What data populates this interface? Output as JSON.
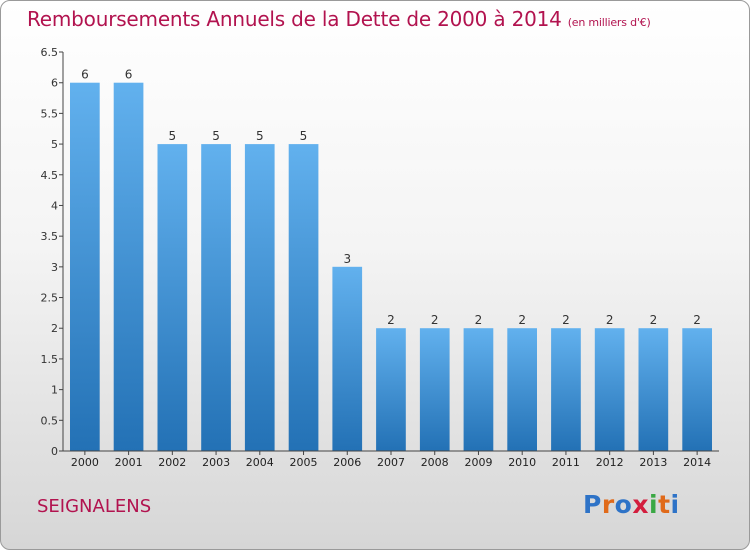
{
  "title": "Remboursements Annuels de la Dette de 2000 à 2014",
  "title_unit": "(en milliers d'€)",
  "commune": "SEIGNALENS",
  "logo": {
    "letters": [
      "P",
      "r",
      "o",
      "x",
      "i",
      "t",
      "i"
    ],
    "colors": [
      "#2e73c7",
      "#e06a1a",
      "#2e73c7",
      "#d31e3e",
      "#3aa844",
      "#e06a1a",
      "#2e73c7"
    ]
  },
  "colors": {
    "title": "#b2134f",
    "bar_light": "#62b1ee",
    "bar_dark": "#2371b5"
  },
  "chart_data": {
    "type": "bar",
    "categories": [
      "2000",
      "2001",
      "2002",
      "2003",
      "2004",
      "2005",
      "2006",
      "2007",
      "2008",
      "2009",
      "2010",
      "2011",
      "2012",
      "2013",
      "2014"
    ],
    "values": [
      6,
      6,
      5,
      5,
      5,
      5,
      3,
      2,
      2,
      2,
      2,
      2,
      2,
      2,
      2
    ],
    "value_labels": [
      "6",
      "6",
      "5",
      "5",
      "5",
      "5",
      "3",
      "2",
      "2",
      "2",
      "2",
      "2",
      "2",
      "2",
      "2"
    ],
    "ylim": [
      0,
      6.5
    ],
    "yticks": [
      0,
      0.5,
      1,
      1.5,
      2,
      2.5,
      3,
      3.5,
      4,
      4.5,
      5,
      5.5,
      6,
      6.5
    ],
    "ytick_labels": [
      "0",
      "0.5",
      "1",
      "1.5",
      "2",
      "2.5",
      "3",
      "3.5",
      "4",
      "4.5",
      "5",
      "5.5",
      "6",
      "6.5"
    ],
    "xlabel": "",
    "ylabel": "",
    "grid": false
  }
}
